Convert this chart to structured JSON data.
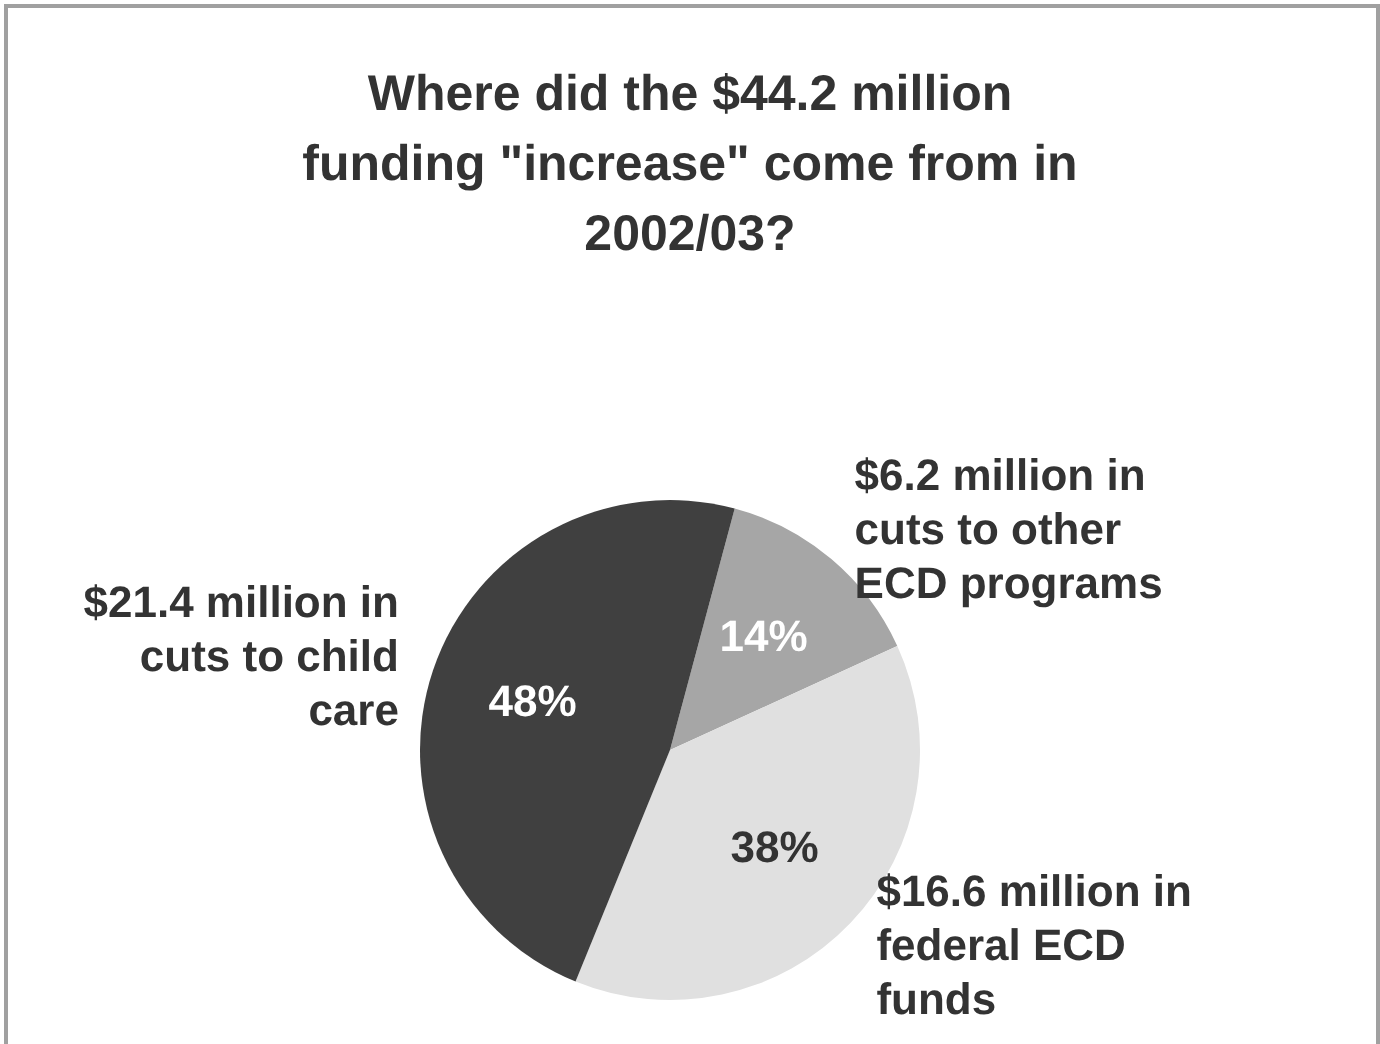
{
  "chart_data": {
    "type": "pie",
    "title": "Where did the $44.2 million funding \"increase\" come from in 2002/03?",
    "categories": [
      "$6.2 million in cuts to other ECD programs",
      "$16.6 million in federal ECD funds",
      "$21.4 million in cuts to child care"
    ],
    "values": [
      14,
      38,
      48
    ],
    "colors": [
      "#a6a6a6",
      "#e0e0e0",
      "#404040"
    ],
    "value_labels": [
      "14%",
      "38%",
      "48%"
    ]
  }
}
